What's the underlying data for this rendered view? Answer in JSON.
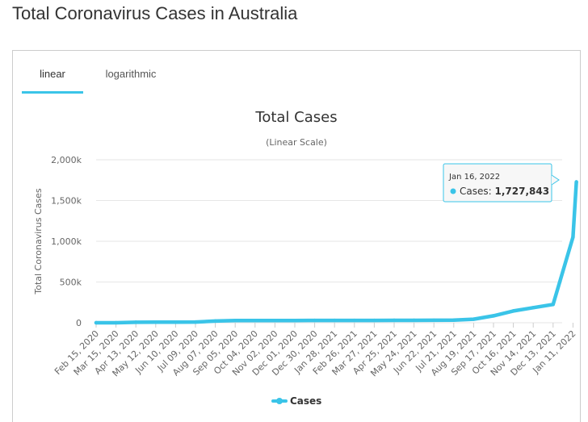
{
  "page": {
    "title": "Total Coronavirus Cases in Australia"
  },
  "tabs": [
    {
      "label": "linear",
      "active": true
    },
    {
      "label": "logarithmic",
      "active": false
    }
  ],
  "colors": {
    "series": "#3ac4e8",
    "tab_underline": "#3ac4e8",
    "grid": "#e6e6e6"
  },
  "chart_data": {
    "type": "line",
    "title": "Total Cases",
    "subtitle": "(Linear Scale)",
    "ylabel": "Total Coronavirus Cases",
    "xlabel": "",
    "ylim": [
      0,
      2000000
    ],
    "yticks": [
      0,
      500000,
      1000000,
      1500000,
      2000000
    ],
    "ytick_labels": [
      "0",
      "500k",
      "1,000k",
      "1,500k",
      "2,000k"
    ],
    "grid": true,
    "legend_position": "bottom-center",
    "categories": [
      "Feb 15, 2020",
      "Mar 15, 2020",
      "Apr 13, 2020",
      "May 12, 2020",
      "Jun 10, 2020",
      "Jul 09, 2020",
      "Aug 07, 2020",
      "Sep 05, 2020",
      "Oct 04, 2020",
      "Nov 02, 2020",
      "Dec 01, 2020",
      "Dec 30, 2020",
      "Jan 28, 2021",
      "Feb 26, 2021",
      "Mar 27, 2021",
      "Apr 25, 2021",
      "May 24, 2021",
      "Jun 22, 2021",
      "Jul 21, 2021",
      "Aug 19, 2021",
      "Sep 17, 2021",
      "Oct 16, 2021",
      "Nov 14, 2021",
      "Dec 13, 2021",
      "Jan 11, 2022"
    ],
    "series": [
      {
        "name": "Cases",
        "values": [
          15,
          300,
          6400,
          7000,
          7300,
          9000,
          21000,
          26300,
          27100,
          27600,
          27900,
          28400,
          28800,
          28900,
          29200,
          29600,
          30100,
          30600,
          32400,
          44000,
          85000,
          145000,
          185000,
          225000,
          1050000
        ]
      }
    ],
    "tooltip": {
      "date": "Jan 16, 2022",
      "label": "Cases: ",
      "value_text": "1,727,843",
      "value": 1727843
    },
    "last_point": {
      "date": "Jan 16, 2022",
      "value": 1727843
    }
  }
}
